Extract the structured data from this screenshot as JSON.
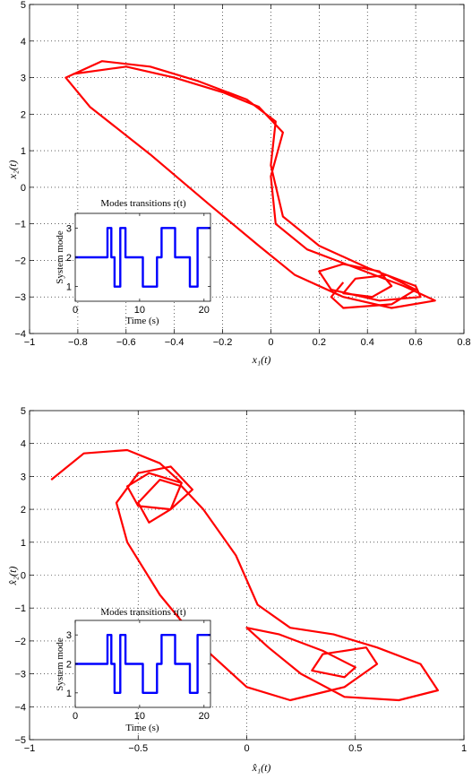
{
  "chart_data": [
    {
      "type": "line",
      "title": "",
      "xlabel": "x₁(t)",
      "ylabel": "x₂(t)",
      "xlim": [
        -1,
        0.8
      ],
      "ylim": [
        -4,
        5
      ],
      "xticks": [
        -1,
        -0.8,
        -0.6,
        -0.4,
        -0.2,
        0,
        0.2,
        0.4,
        0.6,
        0.8
      ],
      "xtick_labels": [
        "−1",
        "−0.8",
        "−0.6",
        "−0.4",
        "−0.2",
        "0",
        "0.2",
        "0.4",
        "0.6",
        "0.8"
      ],
      "yticks": [
        -4,
        -3,
        -2,
        -1,
        0,
        1,
        2,
        3,
        4,
        5
      ],
      "ytick_labels": [
        "−4",
        "−3",
        "−2",
        "−1",
        "0",
        "1",
        "2",
        "3",
        "4",
        "5"
      ],
      "grid": true,
      "series": [
        {
          "color": "#ff0000",
          "x": [
            -0.82,
            -0.6,
            -0.4,
            -0.2,
            -0.05,
            0.05,
            0.0,
            0.02,
            0.15,
            0.35,
            0.55,
            0.68,
            0.5,
            0.3,
            0.1,
            -0.05,
            -0.25,
            -0.5,
            -0.75,
            -0.85,
            -0.7,
            -0.5,
            -0.3,
            -0.1,
            0.02,
            0.0,
            0.05,
            0.2,
            0.4,
            0.6,
            0.62,
            0.45,
            0.25,
            0.2,
            0.3,
            0.45,
            0.5,
            0.42,
            0.3,
            0.35,
            0.48,
            0.6,
            0.5,
            0.3,
            0.25,
            0.3
          ],
          "y": [
            3.1,
            3.3,
            3.0,
            2.6,
            2.2,
            1.5,
            0.3,
            -1.0,
            -1.7,
            -2.2,
            -2.7,
            -3.1,
            -3.3,
            -3.0,
            -2.4,
            -1.6,
            -0.5,
            0.9,
            2.2,
            3.0,
            3.45,
            3.3,
            2.9,
            2.4,
            1.8,
            0.6,
            -0.8,
            -1.6,
            -2.2,
            -2.7,
            -3.0,
            -3.1,
            -2.8,
            -2.3,
            -2.1,
            -2.3,
            -2.7,
            -3.0,
            -2.9,
            -2.5,
            -2.4,
            -2.8,
            -3.2,
            -3.3,
            -3.0,
            -2.6
          ]
        }
      ],
      "inset": {
        "type": "line",
        "title": "Modes transitions r(t)",
        "xlabel": "Time (s)",
        "ylabel": "System mode",
        "xlim": [
          0,
          21
        ],
        "ylim": [
          0.5,
          3.5
        ],
        "xticks": [
          0,
          10,
          20
        ],
        "xtick_labels": [
          "0",
          "10",
          "20"
        ],
        "yticks": [
          1,
          2,
          3
        ],
        "ytick_labels": [
          "1",
          "2",
          "3"
        ],
        "color": "#0000ff",
        "x": [
          0,
          5,
          5,
          5.6,
          5.6,
          6.1,
          6.1,
          7,
          7,
          7.8,
          7.8,
          10.5,
          10.5,
          12.7,
          12.7,
          13.4,
          13.4,
          15.5,
          15.5,
          17.8,
          17.8,
          19,
          19,
          21
        ],
        "y": [
          2,
          2,
          3,
          3,
          2,
          2,
          1,
          1,
          3,
          3,
          2,
          2,
          1,
          1,
          2,
          2,
          3,
          3,
          2,
          2,
          1,
          1,
          3,
          3
        ]
      }
    },
    {
      "type": "line",
      "title": "",
      "xlabel": "x̂₁(t)",
      "ylabel": "x̂₂(t)",
      "xlim": [
        -1,
        1
      ],
      "ylim": [
        -5,
        5
      ],
      "xticks": [
        -1,
        -0.5,
        0,
        0.5,
        1
      ],
      "xtick_labels": [
        "−1",
        "−0.5",
        "0",
        "0.5",
        "1"
      ],
      "yticks": [
        -5,
        -4,
        -3,
        -2,
        -1,
        0,
        1,
        2,
        3,
        4,
        5
      ],
      "ytick_labels": [
        "−5",
        "−4",
        "−3",
        "−2",
        "−1",
        "0",
        "1",
        "2",
        "3",
        "4",
        "5"
      ],
      "grid": true,
      "series": [
        {
          "color": "#ff0000",
          "x": [
            -0.9,
            -0.75,
            -0.55,
            -0.4,
            -0.3,
            -0.35,
            -0.45,
            -0.5,
            -0.4,
            -0.3,
            -0.2,
            -0.05,
            0.05,
            0.2,
            0.4,
            0.6,
            0.8,
            0.88,
            0.7,
            0.45,
            0.25,
            0.1,
            0.0,
            0.15,
            0.35,
            0.5,
            0.45,
            0.3,
            0.35,
            0.55,
            0.6,
            0.45,
            0.2,
            0.0,
            -0.2,
            -0.4,
            -0.55,
            -0.6,
            -0.5,
            -0.35,
            -0.25,
            -0.35,
            -0.5,
            -0.55,
            -0.45,
            -0.3
          ],
          "y": [
            2.9,
            3.7,
            3.8,
            3.4,
            2.8,
            2.0,
            1.6,
            2.2,
            2.9,
            2.7,
            2.0,
            0.6,
            -0.9,
            -1.6,
            -1.8,
            -2.2,
            -2.7,
            -3.5,
            -3.8,
            -3.7,
            -3.0,
            -2.2,
            -1.6,
            -1.8,
            -2.3,
            -2.8,
            -3.1,
            -2.9,
            -2.4,
            -2.2,
            -2.7,
            -3.4,
            -3.8,
            -3.4,
            -2.2,
            -0.6,
            1.0,
            2.2,
            3.1,
            3.3,
            2.6,
            2.0,
            2.1,
            2.7,
            3.1,
            2.8
          ]
        }
      ],
      "inset": {
        "type": "line",
        "title": "Modes transitions r(t)",
        "xlabel": "Time (s)",
        "ylabel": "System mode",
        "xlim": [
          0,
          21
        ],
        "ylim": [
          0.5,
          3.5
        ],
        "xticks": [
          0,
          10,
          20
        ],
        "xtick_labels": [
          "0",
          "10",
          "20"
        ],
        "yticks": [
          1,
          2,
          3
        ],
        "ytick_labels": [
          "1",
          "2",
          "3"
        ],
        "color": "#0000ff",
        "x": [
          0,
          5,
          5,
          5.6,
          5.6,
          6.1,
          6.1,
          7,
          7,
          7.8,
          7.8,
          10.5,
          10.5,
          12.7,
          12.7,
          13.4,
          13.4,
          15.5,
          15.5,
          17.8,
          17.8,
          19,
          19,
          21
        ],
        "y": [
          2,
          2,
          3,
          3,
          2,
          2,
          1,
          1,
          3,
          3,
          2,
          2,
          1,
          1,
          2,
          2,
          3,
          3,
          2,
          2,
          1,
          1,
          3,
          3
        ]
      }
    }
  ]
}
